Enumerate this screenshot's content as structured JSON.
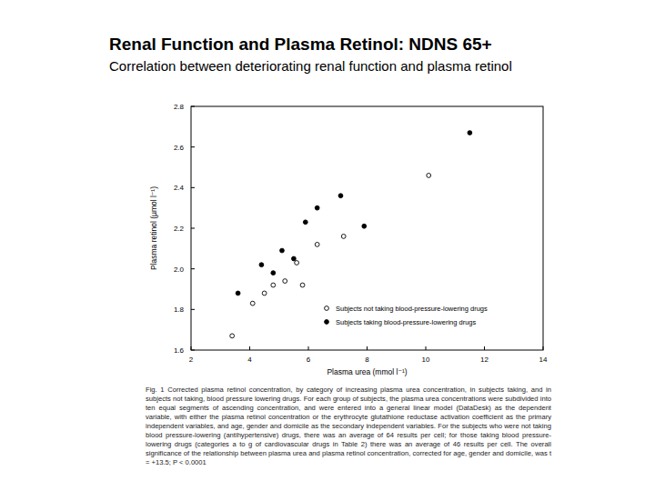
{
  "chart_data": {
    "type": "scatter",
    "title": "Renal Function and Plasma Retinol: NDNS 65+",
    "subtitle": "Correlation between deteriorating renal function and plasma retinol",
    "x_label": "Plasma urea (mmol l⁻¹)",
    "y_label": "Plasma retinol (µmol l⁻¹)",
    "caption": "Fig. 1 Corrected plasma retinol concentration, by category of increasing plasma urea concentration, in subjects taking, and in subjects not taking, blood pressure lowering drugs. For each group of subjects, the plasma urea concentrations were subdivided into ten equal segments of ascending concentration, and were entered into a general linear model (DataDesk) as the dependent variable, with either the plasma retinol concentration or the erythrocyte glutathione reductase activation coefficient as the primary independent variables, and age, gender and domicile as the secondary independent variables. For the subjects who were not taking blood pressure-lowering (antihypertensive) drugs, there was an average of 64 results per cell; for those taking blood pressure-lowering drugs (categories a to g of cardiovascular drugs in Table 2) there was an average of 46 results per cell. The overall significance of the relationship between plasma urea and plasma retinol concentration, corrected for age, gender and domicile, was t = +13.5; P < 0.0001",
    "xlim": [
      2,
      14
    ],
    "xticks": [
      2,
      4,
      6,
      8,
      10,
      12,
      14
    ],
    "ylim": [
      1.6,
      2.8
    ],
    "yticks": [
      1.6,
      1.8,
      {
        "value": 2,
        "label": "2.0"
      },
      2.2,
      2.4,
      2.6,
      2.8
    ],
    "grid": false,
    "legend": "lower right",
    "series": [
      {
        "name": "Subjects not taking blood-pressure-lowering drugs",
        "color": "#000000",
        "marker": "open-circle",
        "x": [
          3.4,
          4.1,
          4.5,
          4.8,
          5.2,
          5.6,
          5.8,
          6.3,
          7.2,
          10.1
        ],
        "values": [
          1.67,
          1.83,
          1.88,
          1.92,
          1.94,
          2.03,
          1.92,
          2.12,
          2.16,
          2.46
        ]
      },
      {
        "name": "Subjects taking blood-pressure-lowering drugs",
        "color": "#000000",
        "marker": "filled-circle",
        "x": [
          3.6,
          4.4,
          4.8,
          5.1,
          5.5,
          5.9,
          6.3,
          7.1,
          7.9,
          11.5
        ],
        "values": [
          1.88,
          2.02,
          1.98,
          2.09,
          2.05,
          2.23,
          2.3,
          2.36,
          2.21,
          2.67
        ]
      }
    ]
  }
}
